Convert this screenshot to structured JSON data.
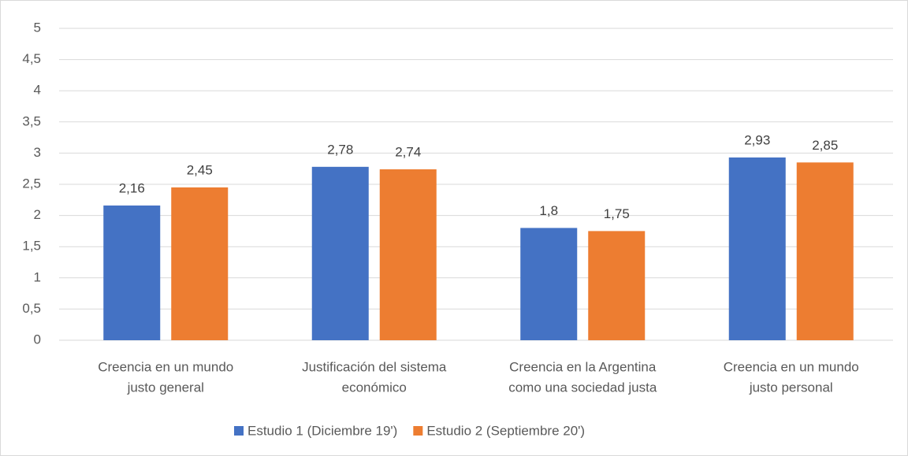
{
  "chart_data": {
    "type": "bar",
    "categories": [
      [
        "Creencia en un mundo",
        "justo general"
      ],
      [
        "Justificación del sistema",
        "económico"
      ],
      [
        "Creencia en la Argentina",
        "como una sociedad justa"
      ],
      [
        "Creencia en un mundo",
        "justo personal"
      ]
    ],
    "series": [
      {
        "name": "Estudio 1 (Diciembre 19')",
        "color": "#4472c4",
        "values": [
          2.16,
          2.78,
          1.8,
          2.93
        ],
        "value_labels": [
          "2,16",
          "2,78",
          "1,8",
          "2,93"
        ]
      },
      {
        "name": "Estudio 2 (Septiembre 20')",
        "color": "#ed7d31",
        "values": [
          2.45,
          2.74,
          1.75,
          2.85
        ],
        "value_labels": [
          "2,45",
          "2,74",
          "1,75",
          "2,85"
        ]
      }
    ],
    "ylim": [
      0,
      5
    ],
    "yticks": [
      0,
      {
        "value": 0.5,
        "label": "0,5"
      },
      1,
      {
        "value": 1.5,
        "label": "1,5"
      },
      2,
      {
        "value": 2.5,
        "label": "2,5"
      },
      3,
      {
        "value": 3.5,
        "label": "3,5"
      },
      4,
      {
        "value": 4.5,
        "label": "4,5"
      },
      5
    ],
    "grid": true,
    "legend": "bottom"
  }
}
